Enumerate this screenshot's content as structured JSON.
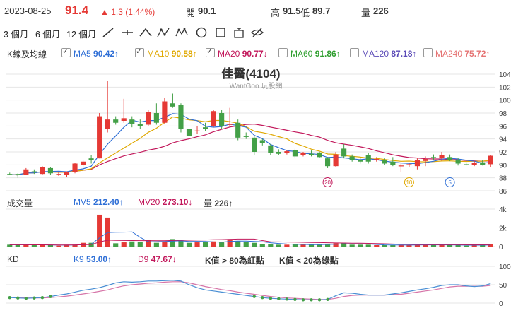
{
  "quote": {
    "date": "2023-08-25",
    "price": "91.4",
    "change": "▲ 1.3 (1.44%)",
    "open_label": "開",
    "open": "90.1",
    "high_label": "高",
    "high": "91.5",
    "low_label": "低",
    "low": "89.7",
    "vol_label": "量",
    "vol": "226"
  },
  "toolbar": {
    "range_3m": "3 個月",
    "range_6m": "6 個月",
    "range_12m": "12 個月",
    "tools": [
      "line-tool-icon",
      "horizontal-line-icon",
      "angle-line-icon",
      "pattern-icon",
      "wave-pattern-icon",
      "circle-tool-icon",
      "rectangle-tool-icon",
      "text-tool-icon",
      "hide-drawings-icon"
    ]
  },
  "price_panel": {
    "label": "K線及均線",
    "ma": [
      {
        "name": "MA5",
        "value": "90.42↑",
        "checked": true,
        "color": "#2f6fd6"
      },
      {
        "name": "MA10",
        "value": "90.58↑",
        "checked": true,
        "color": "#e0a800"
      },
      {
        "name": "MA20",
        "value": "90.77↓",
        "checked": true,
        "color": "#c2185b"
      },
      {
        "name": "MA60",
        "value": "91.86↑",
        "checked": false,
        "color": "#2e9e2e"
      },
      {
        "name": "MA120",
        "value": "87.18↑",
        "checked": false,
        "color": "#5b4bb7"
      },
      {
        "name": "MA240",
        "value": "75.72↑",
        "checked": false,
        "color": "#e57373"
      }
    ],
    "title": "佳醫(4104)",
    "watermark": "WantGoo 玩股網",
    "y_ticks": [
      "104",
      "102",
      "100",
      "98",
      "96",
      "94",
      "92",
      "90",
      "88",
      "86"
    ],
    "markers": [
      "20",
      "10",
      "5"
    ]
  },
  "volume_panel": {
    "label": "成交量",
    "mv5_name": "MV5",
    "mv5_value": "212.40↑",
    "mv20_name": "MV20",
    "mv20_value": "273.10↓",
    "vol_name": "量",
    "vol_value": "226↑",
    "y_ticks": [
      "4k",
      "2k",
      "0"
    ]
  },
  "kd_panel": {
    "label": "KD",
    "k_name": "K9",
    "k_value": "53.00↑",
    "d_name": "D9",
    "d_value": "47.67↓",
    "note1": "K值 > 80為紅點",
    "note2": "K值 < 20為綠點",
    "y_ticks": [
      "100",
      "50",
      "0"
    ]
  },
  "colors": {
    "up": "#e53935",
    "down": "#43a047",
    "k_line": "#4a8fd4",
    "d_line": "#d675a8",
    "grid": "#e6e6e6"
  },
  "chart_data": {
    "type": "candlestick",
    "ylim": [
      86,
      104
    ],
    "candles": [
      {
        "o": 88.6,
        "h": 88.8,
        "l": 88.4,
        "c": 88.5
      },
      {
        "o": 88.6,
        "h": 88.7,
        "l": 88.0,
        "c": 88.4
      },
      {
        "o": 88.5,
        "h": 89.5,
        "l": 88.4,
        "c": 89.3
      },
      {
        "o": 89.0,
        "h": 89.3,
        "l": 88.6,
        "c": 88.9
      },
      {
        "o": 88.6,
        "h": 89.8,
        "l": 88.5,
        "c": 89.6
      },
      {
        "o": 89.5,
        "h": 89.6,
        "l": 88.5,
        "c": 88.7
      },
      {
        "o": 88.6,
        "h": 88.9,
        "l": 88.3,
        "c": 88.6
      },
      {
        "o": 88.5,
        "h": 89.0,
        "l": 88.1,
        "c": 88.9
      },
      {
        "o": 88.9,
        "h": 90.3,
        "l": 88.7,
        "c": 90.2
      },
      {
        "o": 90.0,
        "h": 90.7,
        "l": 89.5,
        "c": 90.5
      },
      {
        "o": 91.0,
        "h": 91.5,
        "l": 90.2,
        "c": 90.8
      },
      {
        "o": 91.0,
        "h": 98.0,
        "l": 91.0,
        "c": 97.5
      },
      {
        "o": 95.5,
        "h": 103.0,
        "l": 95.0,
        "c": 97.0
      },
      {
        "o": 97.0,
        "h": 97.5,
        "l": 96.2,
        "c": 96.5
      },
      {
        "o": 96.8,
        "h": 100.2,
        "l": 96.5,
        "c": 97.2
      },
      {
        "o": 97.0,
        "h": 97.5,
        "l": 95.8,
        "c": 96.3
      },
      {
        "o": 96.3,
        "h": 97.0,
        "l": 95.6,
        "c": 96.0
      },
      {
        "o": 96.2,
        "h": 98.5,
        "l": 96.0,
        "c": 98.2
      },
      {
        "o": 98.0,
        "h": 99.5,
        "l": 96.2,
        "c": 96.5
      },
      {
        "o": 96.5,
        "h": 100.3,
        "l": 96.3,
        "c": 99.8
      },
      {
        "o": 99.5,
        "h": 101.0,
        "l": 98.8,
        "c": 99.0
      },
      {
        "o": 99.2,
        "h": 99.5,
        "l": 95.0,
        "c": 95.5
      },
      {
        "o": 95.5,
        "h": 96.2,
        "l": 94.2,
        "c": 94.5
      },
      {
        "o": 95.2,
        "h": 96.0,
        "l": 94.8,
        "c": 95.3
      },
      {
        "o": 95.8,
        "h": 96.5,
        "l": 95.2,
        "c": 95.5
      },
      {
        "o": 96.0,
        "h": 98.5,
        "l": 95.8,
        "c": 98.3
      },
      {
        "o": 98.0,
        "h": 98.5,
        "l": 95.5,
        "c": 96.0
      },
      {
        "o": 96.2,
        "h": 98.8,
        "l": 95.8,
        "c": 96.3
      },
      {
        "o": 96.5,
        "h": 97.0,
        "l": 93.8,
        "c": 94.2
      },
      {
        "o": 94.5,
        "h": 95.0,
        "l": 94.0,
        "c": 94.3
      },
      {
        "o": 94.2,
        "h": 94.5,
        "l": 91.5,
        "c": 92.0
      },
      {
        "o": 93.8,
        "h": 94.0,
        "l": 93.0,
        "c": 93.4
      },
      {
        "o": 93.0,
        "h": 93.2,
        "l": 91.5,
        "c": 91.8
      },
      {
        "o": 92.0,
        "h": 92.4,
        "l": 91.5,
        "c": 91.7
      },
      {
        "o": 91.8,
        "h": 92.3,
        "l": 91.6,
        "c": 92.1
      },
      {
        "o": 92.3,
        "h": 92.5,
        "l": 91.0,
        "c": 91.3
      },
      {
        "o": 91.5,
        "h": 92.0,
        "l": 91.3,
        "c": 91.9
      },
      {
        "o": 91.7,
        "h": 92.2,
        "l": 91.3,
        "c": 91.5
      },
      {
        "o": 91.9,
        "h": 92.0,
        "l": 91.1,
        "c": 91.2
      },
      {
        "o": 91.0,
        "h": 91.2,
        "l": 89.5,
        "c": 89.8
      },
      {
        "o": 89.8,
        "h": 92.0,
        "l": 89.6,
        "c": 91.6
      },
      {
        "o": 92.5,
        "h": 93.2,
        "l": 91.0,
        "c": 91.3
      },
      {
        "o": 91.3,
        "h": 91.6,
        "l": 90.5,
        "c": 90.8
      },
      {
        "o": 90.8,
        "h": 91.2,
        "l": 90.2,
        "c": 90.5
      },
      {
        "o": 91.5,
        "h": 91.8,
        "l": 90.2,
        "c": 90.5
      },
      {
        "o": 90.8,
        "h": 91.2,
        "l": 90.5,
        "c": 90.9
      },
      {
        "o": 90.8,
        "h": 91.0,
        "l": 90.0,
        "c": 90.2
      },
      {
        "o": 90.5,
        "h": 91.2,
        "l": 89.8,
        "c": 90.0
      },
      {
        "o": 89.9,
        "h": 90.2,
        "l": 88.9,
        "c": 89.9
      },
      {
        "o": 90.0,
        "h": 90.3,
        "l": 89.6,
        "c": 90.1
      },
      {
        "o": 89.8,
        "h": 91.0,
        "l": 89.3,
        "c": 90.8
      },
      {
        "o": 90.6,
        "h": 91.3,
        "l": 89.8,
        "c": 90.9
      },
      {
        "o": 91.2,
        "h": 91.6,
        "l": 90.8,
        "c": 91.1
      },
      {
        "o": 91.0,
        "h": 92.0,
        "l": 90.6,
        "c": 91.5
      },
      {
        "o": 91.2,
        "h": 91.6,
        "l": 90.6,
        "c": 90.8
      },
      {
        "o": 90.8,
        "h": 91.1,
        "l": 89.9,
        "c": 90.2
      },
      {
        "o": 90.1,
        "h": 90.4,
        "l": 89.9,
        "c": 90.0
      },
      {
        "o": 90.0,
        "h": 90.6,
        "l": 89.8,
        "c": 90.3
      },
      {
        "o": 90.4,
        "h": 90.8,
        "l": 89.9,
        "c": 90.0
      },
      {
        "o": 90.1,
        "h": 91.5,
        "l": 89.7,
        "c": 91.4
      }
    ],
    "volume": [
      0.2,
      0.2,
      0.2,
      0.15,
      0.2,
      0.15,
      0.1,
      0.2,
      0.2,
      0.4,
      0.4,
      3.4,
      3.1,
      0.35,
      0.45,
      0.55,
      0.5,
      0.7,
      0.4,
      0.55,
      0.8,
      0.6,
      0.4,
      0.45,
      0.5,
      0.55,
      0.45,
      0.8,
      0.6,
      0.5,
      0.4,
      0.25,
      0.3,
      0.2,
      0.2,
      0.25,
      0.2,
      0.2,
      0.2,
      0.3,
      0.35,
      0.4,
      0.2,
      0.2,
      0.2,
      0.15,
      0.15,
      0.15,
      0.2,
      0.15,
      0.2,
      0.2,
      0.15,
      0.2,
      0.15,
      0.15,
      0.1,
      0.15,
      0.2,
      0.23
    ],
    "k": [
      15,
      14,
      13,
      14,
      15,
      18,
      22,
      25,
      30,
      35,
      38,
      42,
      48,
      55,
      58,
      57,
      58,
      60,
      60,
      61,
      62,
      60,
      50,
      42,
      36,
      33,
      30,
      27,
      24,
      21,
      18,
      15,
      13,
      12,
      11,
      10,
      9,
      9,
      9,
      10,
      20,
      28,
      27,
      24,
      22,
      22,
      22,
      25,
      28,
      32,
      36,
      39,
      43,
      48,
      50,
      50,
      47,
      45,
      47,
      53
    ],
    "d": [
      16,
      15,
      14,
      14,
      14,
      15,
      17,
      19,
      22,
      25,
      28,
      32,
      36,
      42,
      47,
      50,
      52,
      54,
      55,
      57,
      58,
      58,
      55,
      50,
      45,
      41,
      37,
      34,
      30,
      27,
      24,
      21,
      18,
      16,
      14,
      13,
      12,
      11,
      10,
      10,
      13,
      18,
      21,
      22,
      22,
      22,
      22,
      23,
      24,
      27,
      30,
      33,
      36,
      40,
      44,
      46,
      46,
      46,
      46,
      48
    ]
  }
}
